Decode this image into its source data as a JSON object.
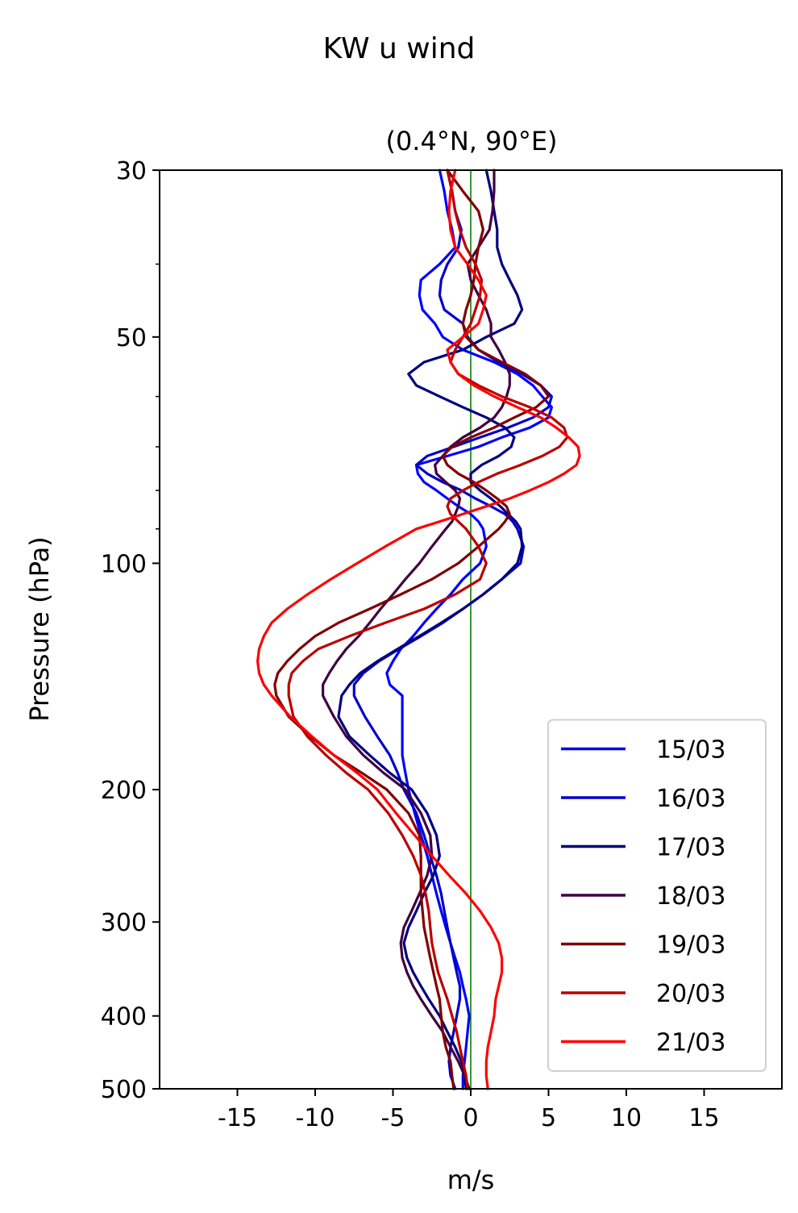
{
  "figure": {
    "suptitle": "KW u wind"
  },
  "chart_data": {
    "type": "line",
    "title": "(0.4°N, 90°E)",
    "xlabel": "m/s",
    "ylabel": "Pressure (hPa)",
    "xlim": [
      -20,
      20
    ],
    "ylim": [
      500,
      30
    ],
    "yscale": "log",
    "xticks": [
      -15,
      -10,
      -5,
      0,
      5,
      10,
      15
    ],
    "xticklabels": [
      "-15",
      "-10",
      "-5",
      "0",
      "5",
      "10",
      "15"
    ],
    "yticks": [
      30,
      50,
      100,
      200,
      300,
      400,
      500
    ],
    "yticklabels": [
      "30",
      "50",
      "100",
      "200",
      "300",
      "400",
      "500"
    ],
    "yminor_ticks": [
      40,
      60,
      70,
      80,
      90
    ],
    "grid": false,
    "zero_line": {
      "x": 0,
      "color": "#008000"
    },
    "legend": {
      "placement": "lower-right"
    },
    "pressure_levels": [
      30,
      32,
      34,
      36,
      38,
      40,
      42,
      44,
      46,
      48,
      50,
      52,
      54,
      56,
      58,
      60,
      62,
      64,
      66,
      68,
      70,
      72,
      74,
      76,
      78,
      80,
      82,
      84,
      86,
      88,
      90,
      95,
      100,
      105,
      110,
      115,
      120,
      125,
      130,
      135,
      140,
      145,
      150,
      160,
      170,
      180,
      190,
      200,
      215,
      230,
      245,
      260,
      275,
      290,
      305,
      320,
      335,
      350,
      365,
      380,
      400,
      420,
      440,
      460,
      480,
      500
    ],
    "series": [
      {
        "name": "15/03",
        "color": "#0000ff",
        "values": [
          -2.0,
          -1.7,
          -1.5,
          -1.2,
          -1.0,
          -2.0,
          -3.2,
          -3.3,
          -3.1,
          -2.3,
          -1.8,
          -0.5,
          1.5,
          3.0,
          4.0,
          4.6,
          5.2,
          5.0,
          3.8,
          2.0,
          0.5,
          -1.5,
          -3.5,
          -3.4,
          -3.0,
          -2.2,
          -1.5,
          -0.8,
          0.0,
          0.5,
          0.8,
          1.0,
          0.6,
          -0.5,
          -1.3,
          -2.2,
          -3.0,
          -3.7,
          -4.5,
          -5.0,
          -5.4,
          -5.2,
          -4.4,
          -4.4,
          -4.4,
          -4.4,
          -4.2,
          -4.0,
          -3.6,
          -3.2,
          -2.8,
          -2.5,
          -2.2,
          -1.9,
          -1.6,
          -1.3,
          -1.0,
          -0.7,
          -0.5,
          -0.3,
          -0.1,
          -0.2,
          -0.3,
          -0.4,
          -0.5,
          -0.5
        ]
      },
      {
        "name": "16/03",
        "color": "#0000cc",
        "values": [
          -1.5,
          -1.2,
          -1.0,
          -0.6,
          -0.8,
          -1.5,
          -1.9,
          -2.0,
          -1.7,
          -0.5,
          -0.2,
          0.5,
          1.8,
          3.3,
          4.5,
          5.2,
          5.0,
          4.0,
          2.4,
          0.6,
          -1.1,
          -2.8,
          -3.5,
          -2.8,
          -1.8,
          -0.6,
          0.3,
          1.3,
          2.2,
          2.7,
          3.0,
          3.4,
          3.2,
          2.0,
          0.8,
          -0.5,
          -1.8,
          -3.2,
          -4.6,
          -5.9,
          -6.9,
          -7.5,
          -7.5,
          -6.8,
          -6.0,
          -5.2,
          -4.7,
          -4.3,
          -3.5,
          -3.0,
          -2.6,
          -2.2,
          -1.9,
          -1.7,
          -1.5,
          -1.3,
          -1.1,
          -0.9,
          -0.7,
          -0.7,
          -0.9,
          -1.1,
          -1.3,
          -1.4,
          -1.3,
          -1.0
        ]
      },
      {
        "name": "17/03",
        "color": "#000080",
        "values": [
          1.0,
          1.3,
          1.5,
          1.7,
          1.7,
          2.0,
          2.5,
          3.0,
          3.3,
          2.8,
          1.0,
          -0.5,
          -3.0,
          -4.0,
          -3.5,
          -2.0,
          -0.5,
          1.0,
          2.2,
          2.8,
          2.6,
          1.8,
          0.7,
          0.0,
          0.0,
          0.6,
          1.3,
          1.9,
          2.4,
          2.9,
          3.2,
          3.3,
          3.0,
          2.0,
          0.8,
          -0.5,
          -1.9,
          -3.3,
          -4.7,
          -6.0,
          -7.1,
          -7.8,
          -8.3,
          -8.5,
          -7.8,
          -6.5,
          -5.2,
          -3.8,
          -2.8,
          -2.2,
          -2.0,
          -2.4,
          -3.0,
          -3.5,
          -4.0,
          -4.3,
          -4.1,
          -3.7,
          -3.2,
          -2.7,
          -2.0,
          -1.5,
          -1.0,
          -0.6,
          -0.4,
          -0.3
        ]
      },
      {
        "name": "18/03",
        "color": "#400040",
        "values": [
          1.5,
          1.5,
          1.4,
          1.2,
          0.5,
          -0.2,
          0.0,
          0.5,
          1.0,
          1.3,
          1.3,
          1.8,
          2.2,
          2.5,
          2.5,
          2.3,
          2.0,
          1.5,
          0.6,
          -0.5,
          -1.3,
          -1.8,
          -2.3,
          -2.2,
          -1.6,
          -1.0,
          -0.7,
          -0.8,
          -1.0,
          -1.2,
          -1.6,
          -2.5,
          -3.3,
          -4.2,
          -5.0,
          -5.8,
          -6.5,
          -7.2,
          -8.0,
          -8.6,
          -9.1,
          -9.5,
          -9.5,
          -8.8,
          -8.0,
          -6.9,
          -5.6,
          -4.2,
          -3.2,
          -2.6,
          -2.5,
          -2.8,
          -3.3,
          -3.8,
          -4.3,
          -4.5,
          -4.4,
          -4.1,
          -3.7,
          -3.2,
          -2.5,
          -1.8,
          -1.3,
          -0.8,
          -0.4,
          -0.1
        ]
      },
      {
        "name": "19/03",
        "color": "#800000",
        "values": [
          -1.5,
          -0.5,
          0.5,
          0.8,
          0.5,
          0.3,
          0.2,
          0.0,
          -0.3,
          -0.5,
          -0.3,
          0.5,
          2.0,
          3.5,
          4.5,
          5.0,
          4.2,
          2.8,
          1.5,
          0.0,
          -1.2,
          -1.8,
          -1.5,
          -0.8,
          0.2,
          1.0,
          1.7,
          2.3,
          2.5,
          2.2,
          1.8,
          0.5,
          -0.8,
          -2.5,
          -4.5,
          -6.5,
          -8.5,
          -10.0,
          -11.0,
          -11.8,
          -12.4,
          -12.6,
          -12.5,
          -11.7,
          -10.3,
          -8.8,
          -7.0,
          -5.4,
          -4.0,
          -3.3,
          -3.2,
          -3.2,
          -3.2,
          -3.1,
          -3.0,
          -2.8,
          -2.6,
          -2.4,
          -2.2,
          -2.0,
          -1.9,
          -1.8,
          -1.6,
          -1.3,
          -1.2,
          -1.1
        ]
      },
      {
        "name": "20/03",
        "color": "#bb0000",
        "values": [
          -1.5,
          -1.2,
          -1.0,
          -0.7,
          -0.3,
          0.3,
          0.7,
          0.6,
          0.3,
          0.0,
          -0.5,
          -1.0,
          -1.3,
          -0.8,
          0.5,
          2.0,
          3.8,
          5.2,
          6.0,
          6.2,
          5.7,
          4.6,
          3.2,
          1.7,
          0.5,
          -0.5,
          -1.3,
          -1.5,
          -1.3,
          -0.8,
          -0.3,
          0.5,
          1.0,
          0.6,
          -1.0,
          -3.0,
          -5.5,
          -7.8,
          -9.8,
          -10.8,
          -11.5,
          -11.7,
          -11.7,
          -11.4,
          -10.5,
          -9.3,
          -8.0,
          -6.6,
          -5.3,
          -4.4,
          -3.7,
          -3.2,
          -2.9,
          -2.7,
          -2.6,
          -2.5,
          -2.3,
          -2.1,
          -1.8,
          -1.5,
          -1.2,
          -0.9,
          -0.7,
          -0.5,
          -0.3,
          -0.2
        ]
      },
      {
        "name": "21/03",
        "color": "#ff0000",
        "values": [
          -1.0,
          -1.3,
          -1.4,
          -1.3,
          -1.0,
          -0.2,
          0.5,
          1.0,
          0.8,
          0.5,
          -0.5,
          -1.5,
          -1.3,
          -0.8,
          0.2,
          1.5,
          3.0,
          4.5,
          5.5,
          6.3,
          6.9,
          7.0,
          6.8,
          6.0,
          5.0,
          3.8,
          2.5,
          1.0,
          -0.5,
          -2.0,
          -3.5,
          -5.5,
          -7.3,
          -9.0,
          -10.5,
          -11.8,
          -12.8,
          -13.3,
          -13.6,
          -13.7,
          -13.6,
          -13.3,
          -12.8,
          -11.6,
          -10.2,
          -8.8,
          -7.3,
          -6.0,
          -4.8,
          -3.6,
          -2.5,
          -1.4,
          -0.3,
          0.6,
          1.3,
          1.8,
          2.0,
          2.0,
          1.8,
          1.6,
          1.5,
          1.3,
          1.1,
          1.0,
          1.0,
          1.1
        ]
      }
    ]
  }
}
